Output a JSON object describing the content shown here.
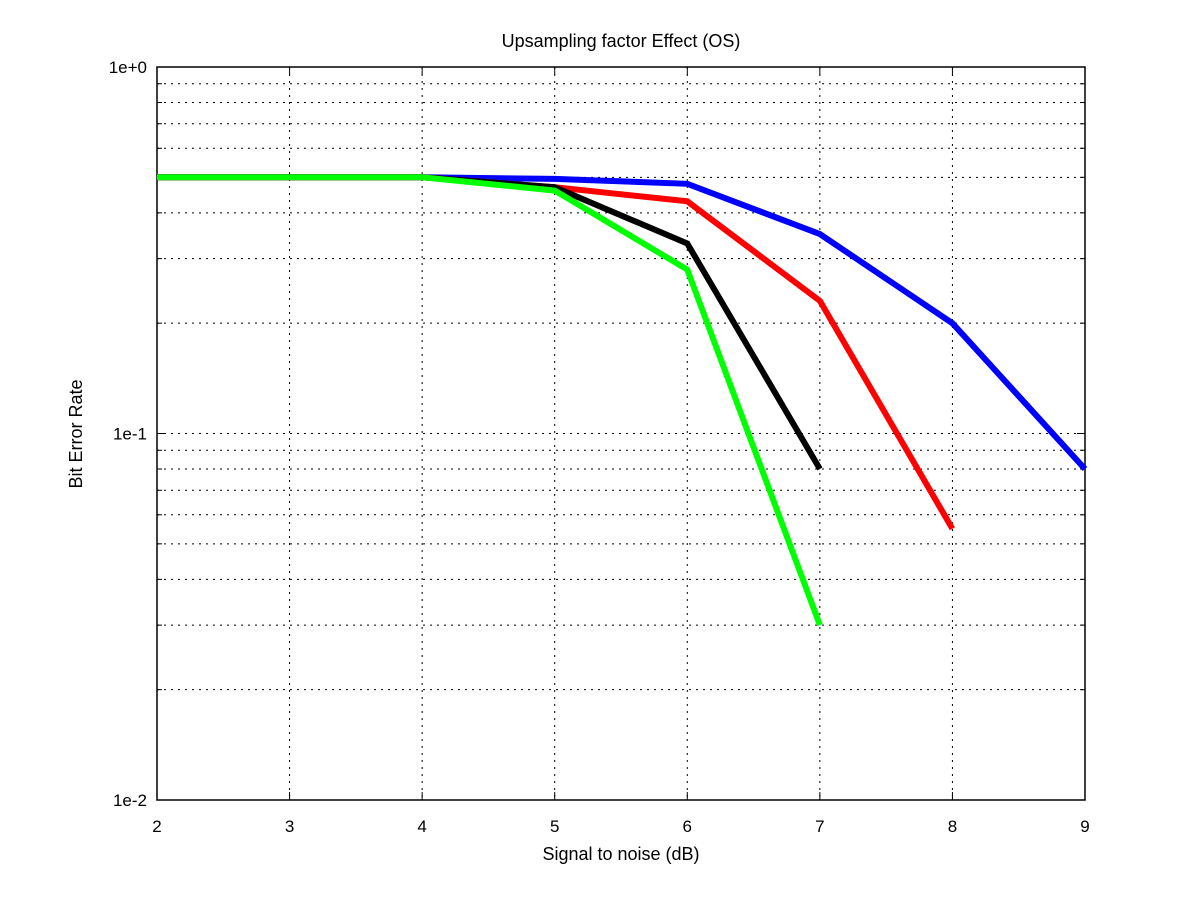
{
  "chart_data": {
    "type": "line",
    "title": "Upsampling factor Effect (OS)",
    "xlabel": "Signal to noise (dB)",
    "ylabel": "Bit Error Rate",
    "xlim": [
      2,
      9
    ],
    "ylim": [
      0.01,
      1
    ],
    "yscale": "log",
    "grid": true,
    "x_ticks": [
      2,
      3,
      4,
      5,
      6,
      7,
      8,
      9
    ],
    "y_ticks": [
      {
        "value": 1,
        "label": "1e+0"
      },
      {
        "value": 0.1,
        "label": "1e-1"
      },
      {
        "value": 0.01,
        "label": "1e-2"
      }
    ],
    "series": [
      {
        "color": "#0000ff",
        "x": [
          2,
          3,
          4,
          5,
          6,
          7,
          8,
          9
        ],
        "y": [
          0.5,
          0.5,
          0.5,
          0.495,
          0.48,
          0.35,
          0.2,
          0.08
        ]
      },
      {
        "color": "#ff0000",
        "x": [
          2,
          3,
          4,
          5,
          6,
          7,
          8
        ],
        "y": [
          0.5,
          0.5,
          0.5,
          0.47,
          0.43,
          0.23,
          0.055
        ]
      },
      {
        "color": "#000000",
        "x": [
          2,
          3,
          4,
          5,
          6,
          7
        ],
        "y": [
          0.5,
          0.5,
          0.5,
          0.47,
          0.33,
          0.08
        ]
      },
      {
        "color": "#00ff00",
        "x": [
          2,
          3,
          4,
          5,
          6,
          7
        ],
        "y": [
          0.5,
          0.5,
          0.5,
          0.46,
          0.28,
          0.03
        ]
      }
    ]
  }
}
